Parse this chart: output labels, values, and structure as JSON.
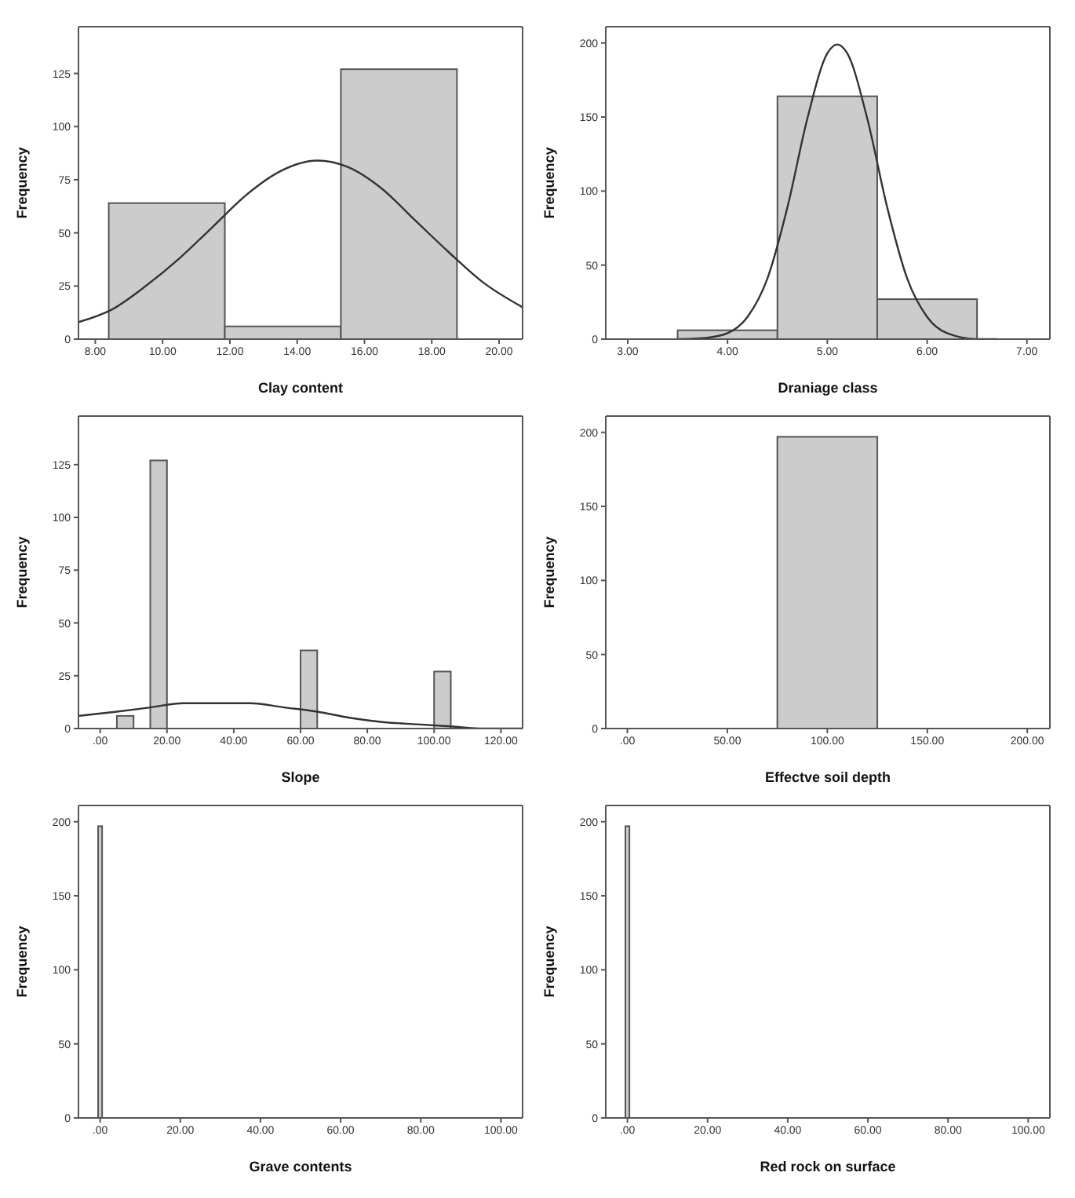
{
  "chart_data": [
    {
      "type": "histogram",
      "xlabel": "Clay content",
      "ylabel": "Frequency",
      "color": "#cccccc",
      "bins": [
        8.4,
        11.85,
        15.3,
        18.75
      ],
      "values": [
        64,
        6,
        127
      ],
      "xlim": [
        7.5,
        20.7
      ],
      "ylim": [
        0,
        147
      ],
      "xticks": [
        {
          "value": 8,
          "label": "8.00"
        },
        {
          "value": 10,
          "label": "10.00"
        },
        {
          "value": 12,
          "label": "12.00"
        },
        {
          "value": 14,
          "label": "14.00"
        },
        {
          "value": 16,
          "label": "16.00"
        },
        {
          "value": 18,
          "label": "18.00"
        },
        {
          "value": 20,
          "label": "20.00"
        }
      ],
      "yticks": [
        0,
        25,
        50,
        75,
        100,
        125
      ],
      "series": [
        {
          "type": "line",
          "color": "#333333",
          "x": [
            7.5,
            8.5,
            9.5,
            10.5,
            11.5,
            12.5,
            13.5,
            14.6,
            15.5,
            16.5,
            17.5,
            18.5,
            19.5,
            20.7
          ],
          "values": [
            8,
            14,
            25,
            38,
            53,
            68,
            79,
            84,
            81,
            71,
            56,
            41,
            27,
            15
          ]
        }
      ]
    },
    {
      "type": "histogram",
      "xlabel": "Draniage class",
      "ylabel": "Frequency",
      "color": "#cccccc",
      "bins": [
        3.5,
        4.5,
        5.5,
        6.5
      ],
      "values": [
        6,
        164,
        27
      ],
      "xlim": [
        2.78,
        7.23
      ],
      "ylim": [
        0,
        211
      ],
      "xticks": [
        {
          "value": 3,
          "label": "3.00"
        },
        {
          "value": 4,
          "label": "4.00"
        },
        {
          "value": 5,
          "label": "5.00"
        },
        {
          "value": 6,
          "label": "6.00"
        },
        {
          "value": 7,
          "label": "7.00"
        }
      ],
      "yticks": [
        0,
        50,
        100,
        150,
        200
      ],
      "series": [
        {
          "type": "line",
          "color": "#333333",
          "x": [
            3.5,
            3.8,
            4.0,
            4.2,
            4.4,
            4.6,
            4.8,
            5.0,
            5.1,
            5.2,
            5.4,
            5.6,
            5.8,
            6.0,
            6.2,
            6.5,
            6.7
          ],
          "values": [
            0,
            1,
            4,
            15,
            41,
            89,
            149,
            193,
            199,
            193,
            149,
            89,
            41,
            15,
            4,
            0,
            0
          ]
        }
      ]
    },
    {
      "type": "histogram",
      "xlabel": "Slope",
      "ylabel": "Frequency",
      "color": "#cccccc",
      "bins": [
        5,
        10,
        15,
        20,
        25,
        30,
        35,
        40,
        45,
        50,
        55,
        60,
        65,
        70,
        75,
        80,
        85,
        90,
        95,
        100,
        105
      ],
      "values": [
        6,
        0,
        127,
        0,
        0,
        0,
        0,
        0,
        0,
        0,
        0,
        37,
        0,
        0,
        0,
        0,
        0,
        0,
        0,
        27
      ],
      "xlim": [
        -6.5,
        126.5
      ],
      "ylim": [
        0,
        148
      ],
      "xticks": [
        {
          "value": 0,
          "label": ".00"
        },
        {
          "value": 20,
          "label": "20.00"
        },
        {
          "value": 40,
          "label": "40.00"
        },
        {
          "value": 60,
          "label": "60.00"
        },
        {
          "value": 80,
          "label": "80.00"
        },
        {
          "value": 100,
          "label": "100.00"
        },
        {
          "value": 120,
          "label": "120.00"
        }
      ],
      "yticks": [
        0,
        25,
        50,
        75,
        100,
        125
      ],
      "series": [
        {
          "type": "line",
          "color": "#333333",
          "x": [
            -6.5,
            5,
            15,
            25,
            34,
            45,
            55,
            65,
            75,
            85,
            95,
            105,
            115,
            126.5
          ],
          "values": [
            6,
            8,
            10,
            12,
            12,
            12,
            10,
            8,
            5,
            3,
            2,
            1,
            0,
            0
          ]
        }
      ]
    },
    {
      "type": "histogram",
      "xlabel": "Effectve soil depth",
      "ylabel": "Frequency",
      "color": "#cccccc",
      "bins": [
        75,
        125
      ],
      "values": [
        197
      ],
      "xlim": [
        -10.8,
        211.3
      ],
      "ylim": [
        0,
        211
      ],
      "xticks": [
        {
          "value": 0,
          "label": ".00"
        },
        {
          "value": 50,
          "label": "50.00"
        },
        {
          "value": 100,
          "label": "100.00"
        },
        {
          "value": 150,
          "label": "150.00"
        },
        {
          "value": 200,
          "label": "200.00"
        }
      ],
      "yticks": [
        0,
        50,
        100,
        150,
        200
      ]
    },
    {
      "type": "histogram",
      "xlabel": "Grave contents",
      "ylabel": "Frequency",
      "color": "#cccccc",
      "bins": [
        -0.5,
        0.5
      ],
      "values": [
        197
      ],
      "xlim": [
        -5.4,
        105.4
      ],
      "ylim": [
        0,
        211
      ],
      "xticks": [
        {
          "value": 0,
          "label": ".00"
        },
        {
          "value": 20,
          "label": "20.00"
        },
        {
          "value": 40,
          "label": "40.00"
        },
        {
          "value": 60,
          "label": "60.00"
        },
        {
          "value": 80,
          "label": "80.00"
        },
        {
          "value": 100,
          "label": "100.00"
        }
      ],
      "yticks": [
        0,
        50,
        100,
        150,
        200
      ]
    },
    {
      "type": "histogram",
      "xlabel": "Red rock on surface",
      "ylabel": "Frequency",
      "color": "#cccccc",
      "bins": [
        -0.5,
        0.5
      ],
      "values": [
        197
      ],
      "xlim": [
        -5.4,
        105.4
      ],
      "ylim": [
        0,
        211
      ],
      "xticks": [
        {
          "value": 0,
          "label": ".00"
        },
        {
          "value": 20,
          "label": "20.00"
        },
        {
          "value": 40,
          "label": "40.00"
        },
        {
          "value": 60,
          "label": "60.00"
        },
        {
          "value": 80,
          "label": "80.00"
        },
        {
          "value": 100,
          "label": "100.00"
        }
      ],
      "yticks": [
        0,
        50,
        100,
        150,
        200
      ]
    }
  ]
}
